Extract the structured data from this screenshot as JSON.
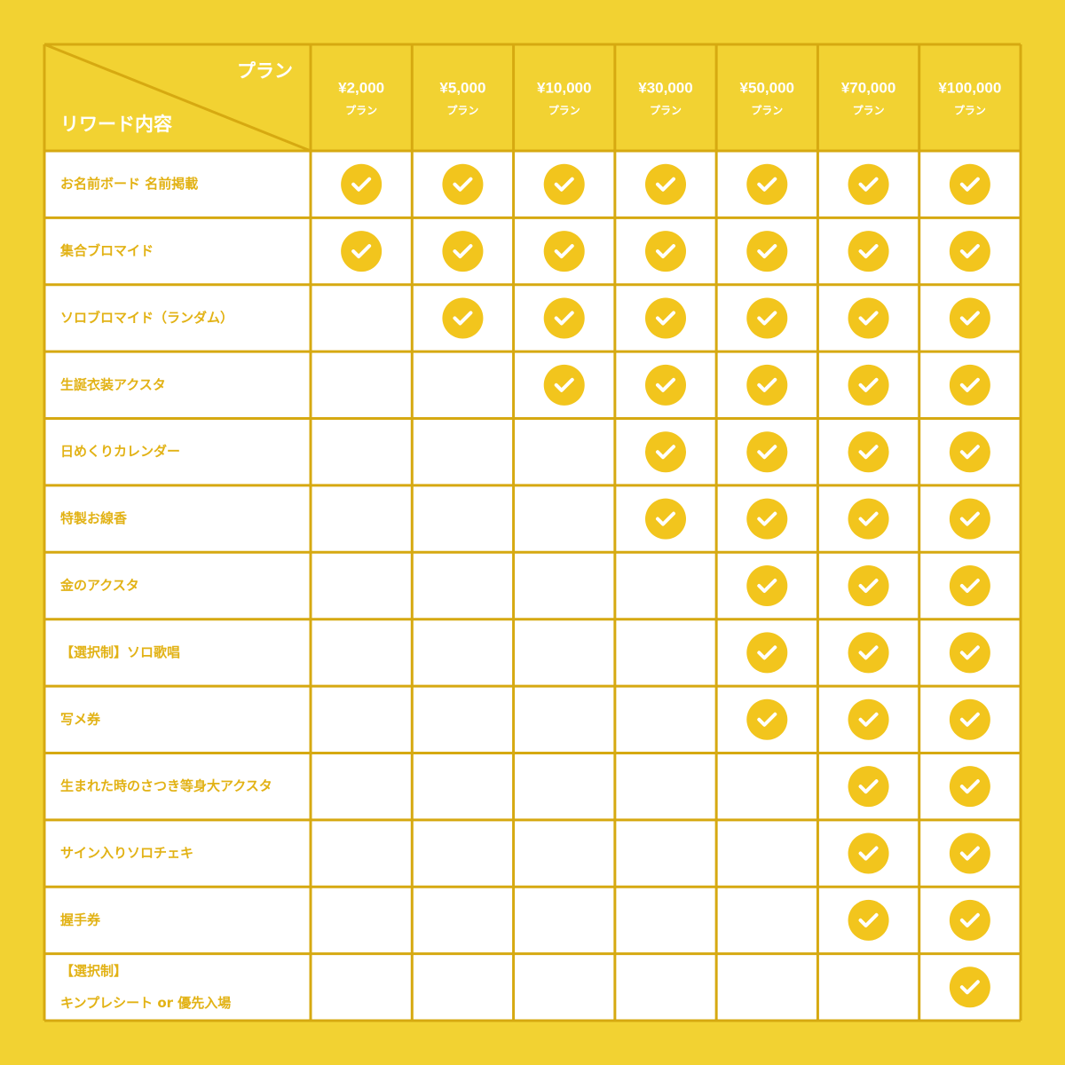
{
  "table": {
    "corner": {
      "plan": "プラン",
      "reward": "リワード内容"
    },
    "plans": [
      {
        "price": "¥2,000",
        "label": "プラン"
      },
      {
        "price": "¥5,000",
        "label": "プラン"
      },
      {
        "price": "¥10,000",
        "label": "プラン"
      },
      {
        "price": "¥30,000",
        "label": "プラン"
      },
      {
        "price": "¥50,000",
        "label": "プラン"
      },
      {
        "price": "¥70,000",
        "label": "プラン"
      },
      {
        "price": "¥100,000",
        "label": "プラン"
      }
    ],
    "rows": [
      {
        "lines": [
          "お名前ボード 名前掲載"
        ],
        "included": [
          true,
          true,
          true,
          true,
          true,
          true,
          true
        ]
      },
      {
        "lines": [
          "集合ブロマイド"
        ],
        "included": [
          true,
          true,
          true,
          true,
          true,
          true,
          true
        ]
      },
      {
        "lines": [
          "ソロブロマイド（ランダム）"
        ],
        "included": [
          false,
          true,
          true,
          true,
          true,
          true,
          true
        ]
      },
      {
        "lines": [
          "生誕衣装アクスタ"
        ],
        "included": [
          false,
          false,
          true,
          true,
          true,
          true,
          true
        ]
      },
      {
        "lines": [
          "日めくりカレンダー"
        ],
        "included": [
          false,
          false,
          false,
          true,
          true,
          true,
          true
        ]
      },
      {
        "lines": [
          "特製お線香"
        ],
        "included": [
          false,
          false,
          false,
          true,
          true,
          true,
          true
        ]
      },
      {
        "lines": [
          "金のアクスタ"
        ],
        "included": [
          false,
          false,
          false,
          false,
          true,
          true,
          true
        ]
      },
      {
        "lines": [
          "【選択制】ソロ歌唱"
        ],
        "included": [
          false,
          false,
          false,
          false,
          true,
          true,
          true
        ]
      },
      {
        "lines": [
          "写メ券"
        ],
        "included": [
          false,
          false,
          false,
          false,
          true,
          true,
          true
        ]
      },
      {
        "lines": [
          "生まれた時のさつき等身大アクスタ"
        ],
        "included": [
          false,
          false,
          false,
          false,
          false,
          true,
          true
        ]
      },
      {
        "lines": [
          "サイン入りソロチェキ"
        ],
        "included": [
          false,
          false,
          false,
          false,
          false,
          true,
          true
        ]
      },
      {
        "lines": [
          "握手券"
        ],
        "included": [
          false,
          false,
          false,
          false,
          false,
          true,
          true
        ]
      },
      {
        "lines": [
          "【選択制】",
          "キンプレシート or 優先入場"
        ],
        "included": [
          false,
          false,
          false,
          false,
          false,
          false,
          true
        ]
      }
    ]
  }
}
